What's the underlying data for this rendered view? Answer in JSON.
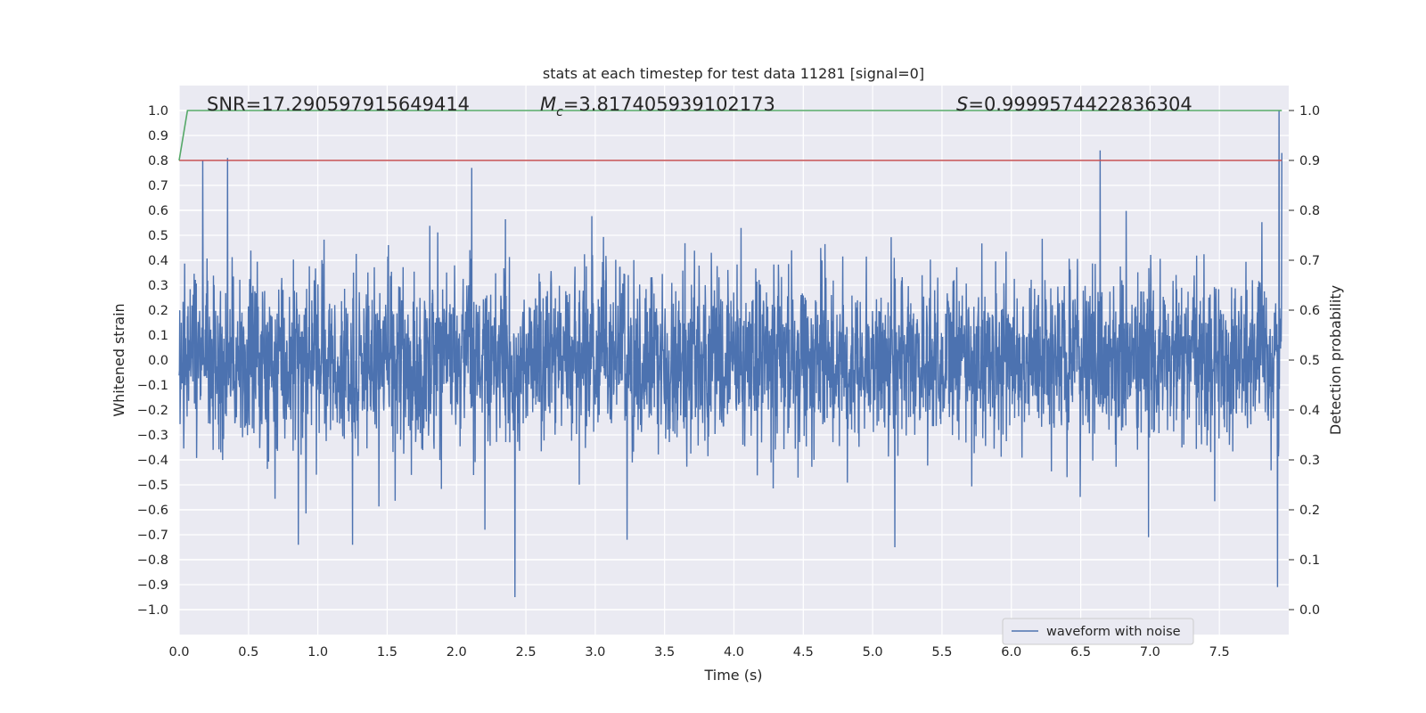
{
  "chart_data": {
    "type": "line",
    "title": "stats at each timestep for test data 11281 [signal=0]",
    "xlabel": "Time (s)",
    "ylabel": "Whitened strain",
    "y2label": "Detection probability",
    "xlim": [
      0.0,
      8.0
    ],
    "ylim": [
      -1.1,
      1.1
    ],
    "y2lim": [
      -0.05,
      1.05
    ],
    "grid": true,
    "x_ticks": [
      0.0,
      0.5,
      1.0,
      1.5,
      2.0,
      2.5,
      3.0,
      3.5,
      4.0,
      4.5,
      5.0,
      5.5,
      6.0,
      6.5,
      7.0,
      7.5
    ],
    "x_tick_labels": [
      "0.0",
      "0.5",
      "1.0",
      "1.5",
      "2.0",
      "2.5",
      "3.0",
      "3.5",
      "4.0",
      "4.5",
      "5.0",
      "5.5",
      "6.0",
      "6.5",
      "7.0",
      "7.5"
    ],
    "y_ticks": [
      1.0,
      0.9,
      0.8,
      0.7,
      0.6,
      0.5,
      0.4,
      0.3,
      0.2,
      0.1,
      0.0,
      -0.1,
      -0.2,
      -0.3,
      -0.4,
      -0.5,
      -0.6,
      -0.7,
      -0.8,
      -0.9,
      -1.0
    ],
    "y_tick_labels": [
      "1.0",
      "0.9",
      "0.8",
      "0.7",
      "0.6",
      "0.5",
      "0.4",
      "0.3",
      "0.2",
      "0.1",
      "0.0",
      "−0.1",
      "−0.2",
      "−0.3",
      "−0.4",
      "−0.5",
      "−0.6",
      "−0.7",
      "−0.8",
      "−0.9",
      "−1.0"
    ],
    "y2_ticks": [
      1.0,
      0.9,
      0.8,
      0.7,
      0.6,
      0.5,
      0.4,
      0.3,
      0.2,
      0.1,
      0.0
    ],
    "y2_tick_labels": [
      "1.0",
      "0.9",
      "0.8",
      "0.7",
      "0.6",
      "0.5",
      "0.4",
      "0.3",
      "0.2",
      "0.1",
      "0.0"
    ],
    "annotations": {
      "snr": "SNR=17.290597915649414",
      "mc_symbol": "M",
      "mc_sub": "c",
      "mc_value": "=3.817405939102173",
      "s_symbol": "S",
      "s_value": "=0.9999574422836304"
    },
    "series": [
      {
        "name": "waveform with noise",
        "axis": "left",
        "color": "#4c72b0",
        "description_values": "noise waveform with typical amplitude about ±0.35",
        "spikes": [
          {
            "x": 0.17,
            "y": 0.8
          },
          {
            "x": 0.35,
            "y": 0.81
          },
          {
            "x": 2.11,
            "y": 0.77
          },
          {
            "x": 6.64,
            "y": 0.84
          },
          {
            "x": 7.93,
            "y": 1.0
          },
          {
            "x": 7.95,
            "y": 0.83
          },
          {
            "x": 2.42,
            "y": -0.95
          },
          {
            "x": 7.92,
            "y": -0.91
          },
          {
            "x": 5.16,
            "y": -0.75
          },
          {
            "x": 0.86,
            "y": -0.74
          },
          {
            "x": 1.25,
            "y": -0.74
          },
          {
            "x": 3.23,
            "y": -0.72
          },
          {
            "x": 6.99,
            "y": -0.71
          },
          {
            "x": 7.96,
            "y": -0.78
          }
        ]
      },
      {
        "name": "",
        "axis": "right",
        "color": "#55a868",
        "x": [
          0.0,
          0.06,
          7.95
        ],
        "y": [
          0.9,
          1.0,
          1.0
        ]
      },
      {
        "name": "",
        "axis": "right",
        "color": "#c44e52",
        "x": [
          0.0,
          7.95
        ],
        "y": [
          0.9,
          0.9
        ]
      }
    ],
    "legend": {
      "placement": "lower-right",
      "entries": [
        {
          "label": "waveform with noise",
          "color": "#4c72b0"
        }
      ]
    }
  }
}
